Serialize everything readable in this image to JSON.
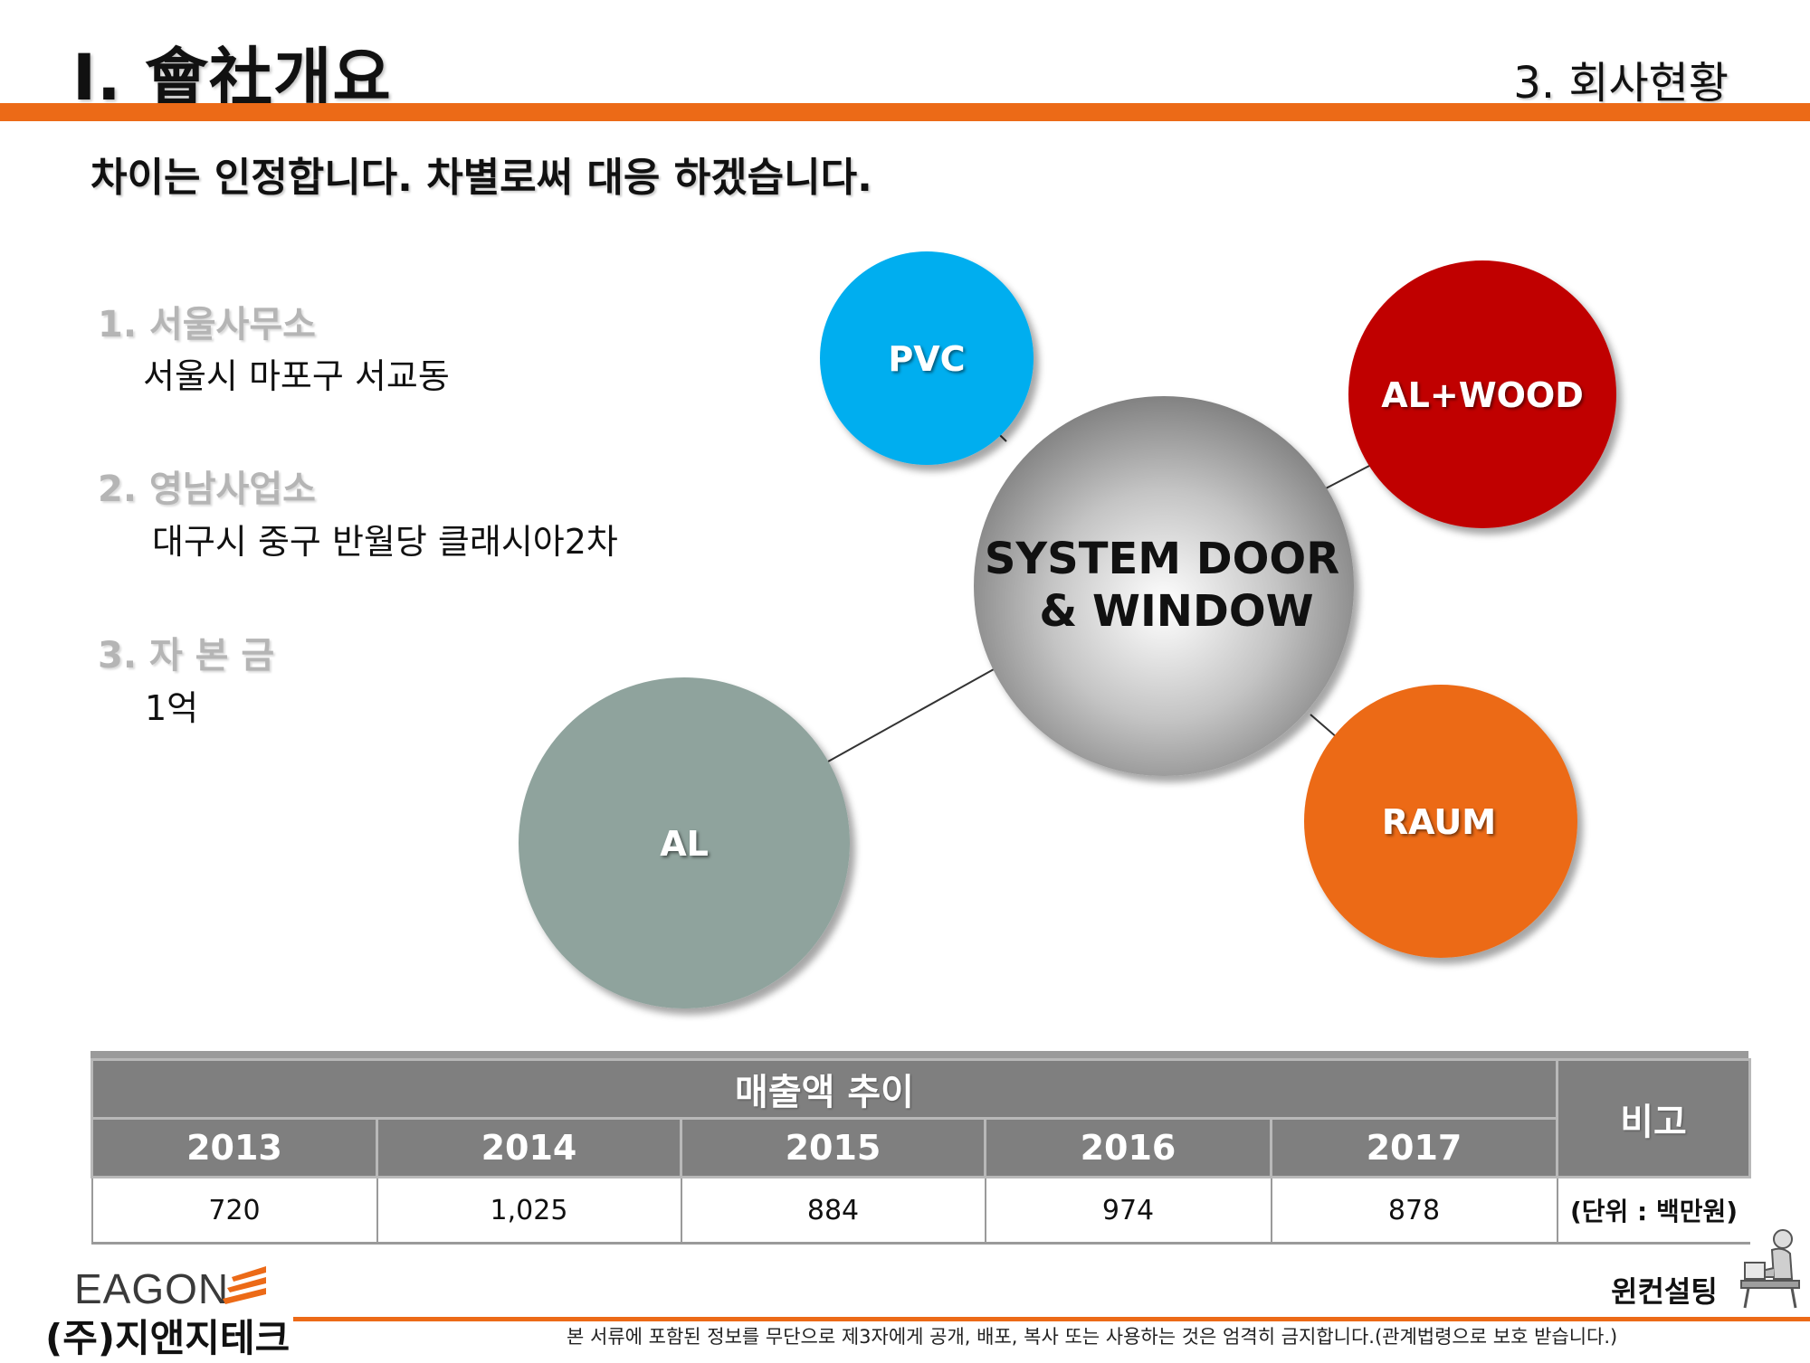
{
  "header": {
    "title": "Ⅰ. 會社개요",
    "section": "3. 회사현황",
    "tagline": "차이는 인정합니다. 차별로써 대응 하겠습니다."
  },
  "info": [
    {
      "heading": "1. 서울사무소",
      "value": "서울시 마포구 서교동"
    },
    {
      "heading": "2. 영남사업소",
      "value": "대구시 중구 반월당 클래시아2차"
    },
    {
      "heading": "3. 자 본 금",
      "value": "1억"
    }
  ],
  "diagram": {
    "center": {
      "line1": "SYSTEM DOOR",
      "line2": "& WINDOW"
    },
    "nodes": [
      {
        "label": "PVC",
        "color": "#00aeef"
      },
      {
        "label": "AL+WOOD",
        "color": "#c00000"
      },
      {
        "label": "AL",
        "color": "#8fa39d"
      },
      {
        "label": "RAUM",
        "color": "#ec6a17"
      }
    ]
  },
  "sales": {
    "title": "매출액 추이",
    "note_header": "비고",
    "note": "(단위 : 백만원)",
    "years": [
      "2013",
      "2014",
      "2015",
      "2016",
      "2017"
    ],
    "values": [
      "720",
      "1,025",
      "884",
      "974",
      "878"
    ]
  },
  "footer": {
    "logo": "EAGON",
    "company": "(주)지앤지테크",
    "consult": "윈컨설팅",
    "disclaimer": "본 서류에 포함된 정보를 무단으로 제3자에게 공개, 배포, 복사 또는 사용하는 것은 엄격히 금지합니다.(관계법령으로 보호 받습니다.)"
  },
  "colors": {
    "accent": "#ec6a17",
    "table_header": "#7f7f7f"
  }
}
